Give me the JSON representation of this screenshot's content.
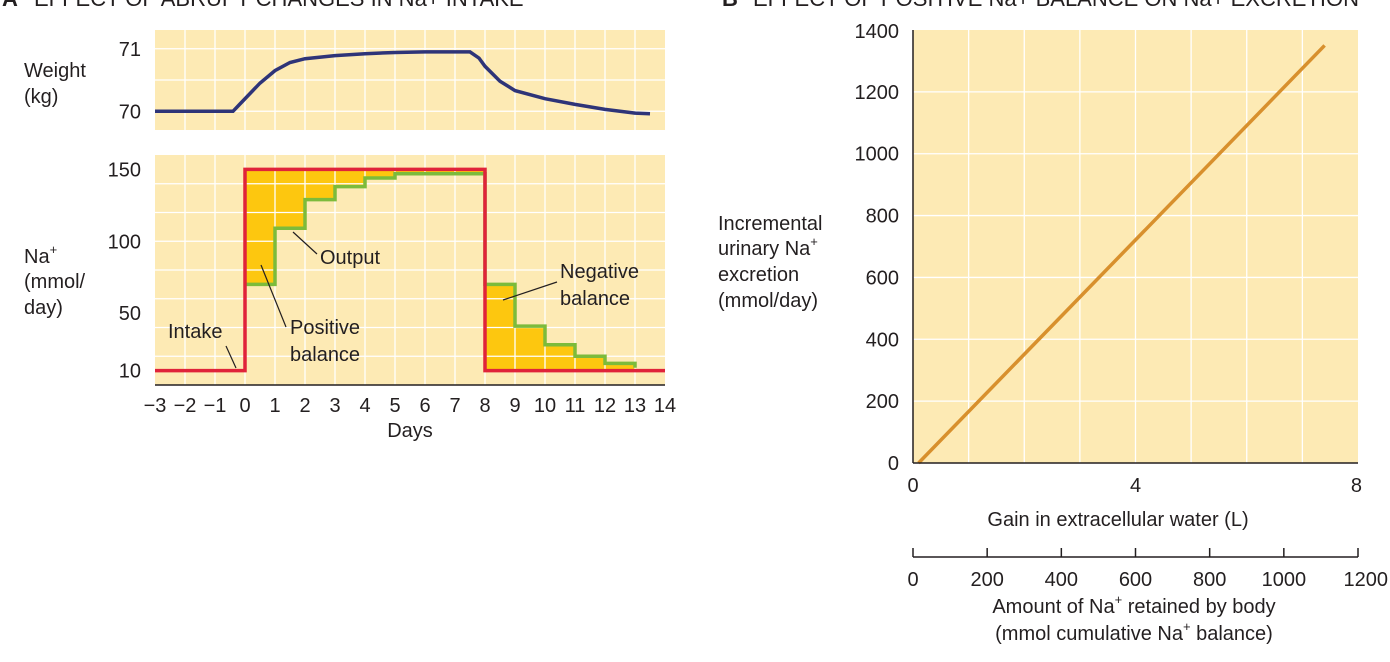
{
  "panel_a": {
    "heading_letter": "A",
    "heading": "EFFECT OF ABRUPT CHANGES IN Na+ INTAKE"
  },
  "panel_b": {
    "heading_letter": "B",
    "heading": "EFFECT OF POSITIVE Na+ BALANCE ON Na+ EXCRETION"
  },
  "colors": {
    "panel_bg": "#fdeab4",
    "grid": "#ffffff",
    "weight_line": "#2e3478",
    "intake_line": "#e0233a",
    "output_line": "#7cbb3b",
    "balance_fill": "#fdc70f",
    "excretion_line": "#d8902d"
  },
  "chart_data": [
    {
      "type": "line",
      "name": "weight",
      "ylabel_lines": [
        "Weight",
        "(kg)"
      ],
      "ylim": [
        69.7,
        71.3
      ],
      "yticks": [
        70,
        71
      ],
      "xlim": [
        -3,
        14
      ],
      "grid": true,
      "series": [
        {
          "name": "Weight",
          "x": [
            -3,
            -0.4,
            -0.2,
            0.5,
            1,
            1.5,
            2,
            3,
            4,
            5,
            6,
            7,
            7.5,
            7.8,
            8,
            8.5,
            9,
            10,
            11,
            12,
            13,
            13.5
          ],
          "y": [
            70.0,
            70.0,
            70.1,
            70.45,
            70.65,
            70.78,
            70.84,
            70.89,
            70.92,
            70.94,
            70.95,
            70.95,
            70.95,
            70.85,
            70.72,
            70.48,
            70.33,
            70.2,
            70.11,
            70.03,
            69.97,
            69.96
          ]
        }
      ]
    },
    {
      "type": "line",
      "name": "sodium_balance",
      "ylabel_lines": [
        "Na+",
        "(mmol/",
        "day)"
      ],
      "xlabel": "Days",
      "ylim": [
        0,
        160
      ],
      "yticks": [
        10,
        50,
        100,
        150
      ],
      "xlim": [
        -3,
        14
      ],
      "xticks": [
        -3,
        -2,
        -1,
        0,
        1,
        2,
        3,
        4,
        5,
        6,
        7,
        8,
        9,
        10,
        11,
        12,
        13,
        14
      ],
      "xtick_labels": [
        "−3",
        "−2",
        "−1",
        "0",
        "1",
        "2",
        "3",
        "4",
        "5",
        "6",
        "7",
        "8",
        "9",
        "10",
        "11",
        "12",
        "13",
        "14"
      ],
      "grid": true,
      "series": [
        {
          "name": "Intake",
          "x": [
            -3,
            0,
            0,
            8,
            8,
            14
          ],
          "y": [
            10,
            10,
            150,
            150,
            10,
            10
          ]
        },
        {
          "name": "Output",
          "x": [
            0,
            1,
            1,
            2,
            2,
            3,
            3,
            4,
            4,
            5,
            5,
            8,
            8,
            9,
            9,
            10,
            10,
            11,
            11,
            12,
            12,
            13,
            13
          ],
          "y": [
            70,
            70,
            109,
            109,
            129,
            129,
            138,
            138,
            144,
            144,
            147,
            147,
            70,
            70,
            41,
            41,
            28,
            28,
            20,
            20,
            15,
            15,
            12
          ]
        }
      ],
      "annotations": {
        "intake": "Intake",
        "output": "Output",
        "positive": [
          "Positive",
          "balance"
        ],
        "negative": [
          "Negative",
          "balance"
        ]
      }
    },
    {
      "type": "line",
      "name": "excretion",
      "ylabel_lines": [
        "Incremental",
        "urinary Na+",
        "excretion",
        "(mmol/day)"
      ],
      "xlabel": "Gain in extracellular water (L)",
      "xlim": [
        0,
        8
      ],
      "xticks": [
        0,
        4,
        8
      ],
      "ylim": [
        0,
        1400
      ],
      "yticks": [
        0,
        200,
        400,
        600,
        800,
        1000,
        1200,
        1400
      ],
      "grid": true,
      "series": [
        {
          "name": "Excretion",
          "x": [
            0.1,
            7.4
          ],
          "y": [
            0,
            1350
          ]
        }
      ],
      "secondary_axis": {
        "label_lines": [
          "Amount of Na+ retained by body",
          "(mmol cumulative Na+ balance)"
        ],
        "xlim": [
          0,
          1200
        ],
        "ticks": [
          0,
          200,
          400,
          600,
          800,
          1000,
          1200
        ]
      }
    }
  ]
}
